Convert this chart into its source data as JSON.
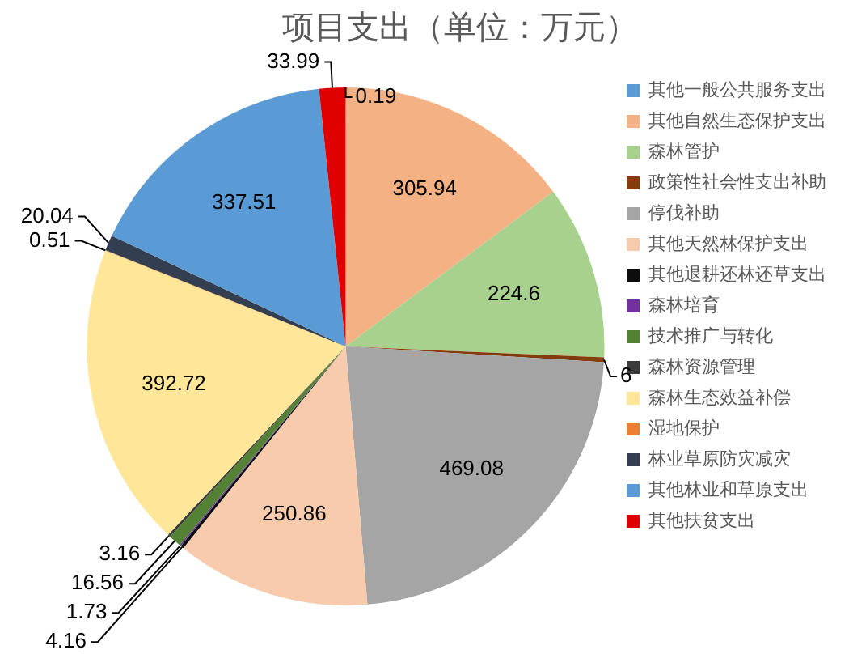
{
  "chart_data": {
    "type": "pie",
    "title": "项目支出（单位：万元）",
    "categories": [
      "其他一般公共服务支出",
      "其他自然生态保护支出",
      "森林管护",
      "政策性社会性支出补助",
      "停伐补助",
      "其他天然林保护支出",
      "其他退耕还林还草支出",
      "森林培育",
      "技术推广与转化",
      "森林资源管理",
      "森林生态效益补偿",
      "湿地保护",
      "林业草原防灾减灾",
      "其他林业和草原支出",
      "其他扶贫支出"
    ],
    "values": [
      0.19,
      305.94,
      224.6,
      6,
      469.08,
      250.86,
      4.16,
      1.73,
      16.56,
      3.16,
      392.72,
      0.51,
      20.04,
      337.51,
      33.99
    ],
    "colors": [
      "#5b9bd5",
      "#f4b183",
      "#a9d18e",
      "#843c0c",
      "#a5a5a5",
      "#f8cbad",
      "#0d0d0d",
      "#7030a0",
      "#548235",
      "#3b3b3b",
      "#ffe699",
      "#ed7d31",
      "#333f50",
      "#5b9bd5",
      "#e00000"
    ],
    "data_labels": true,
    "legend": "right"
  }
}
